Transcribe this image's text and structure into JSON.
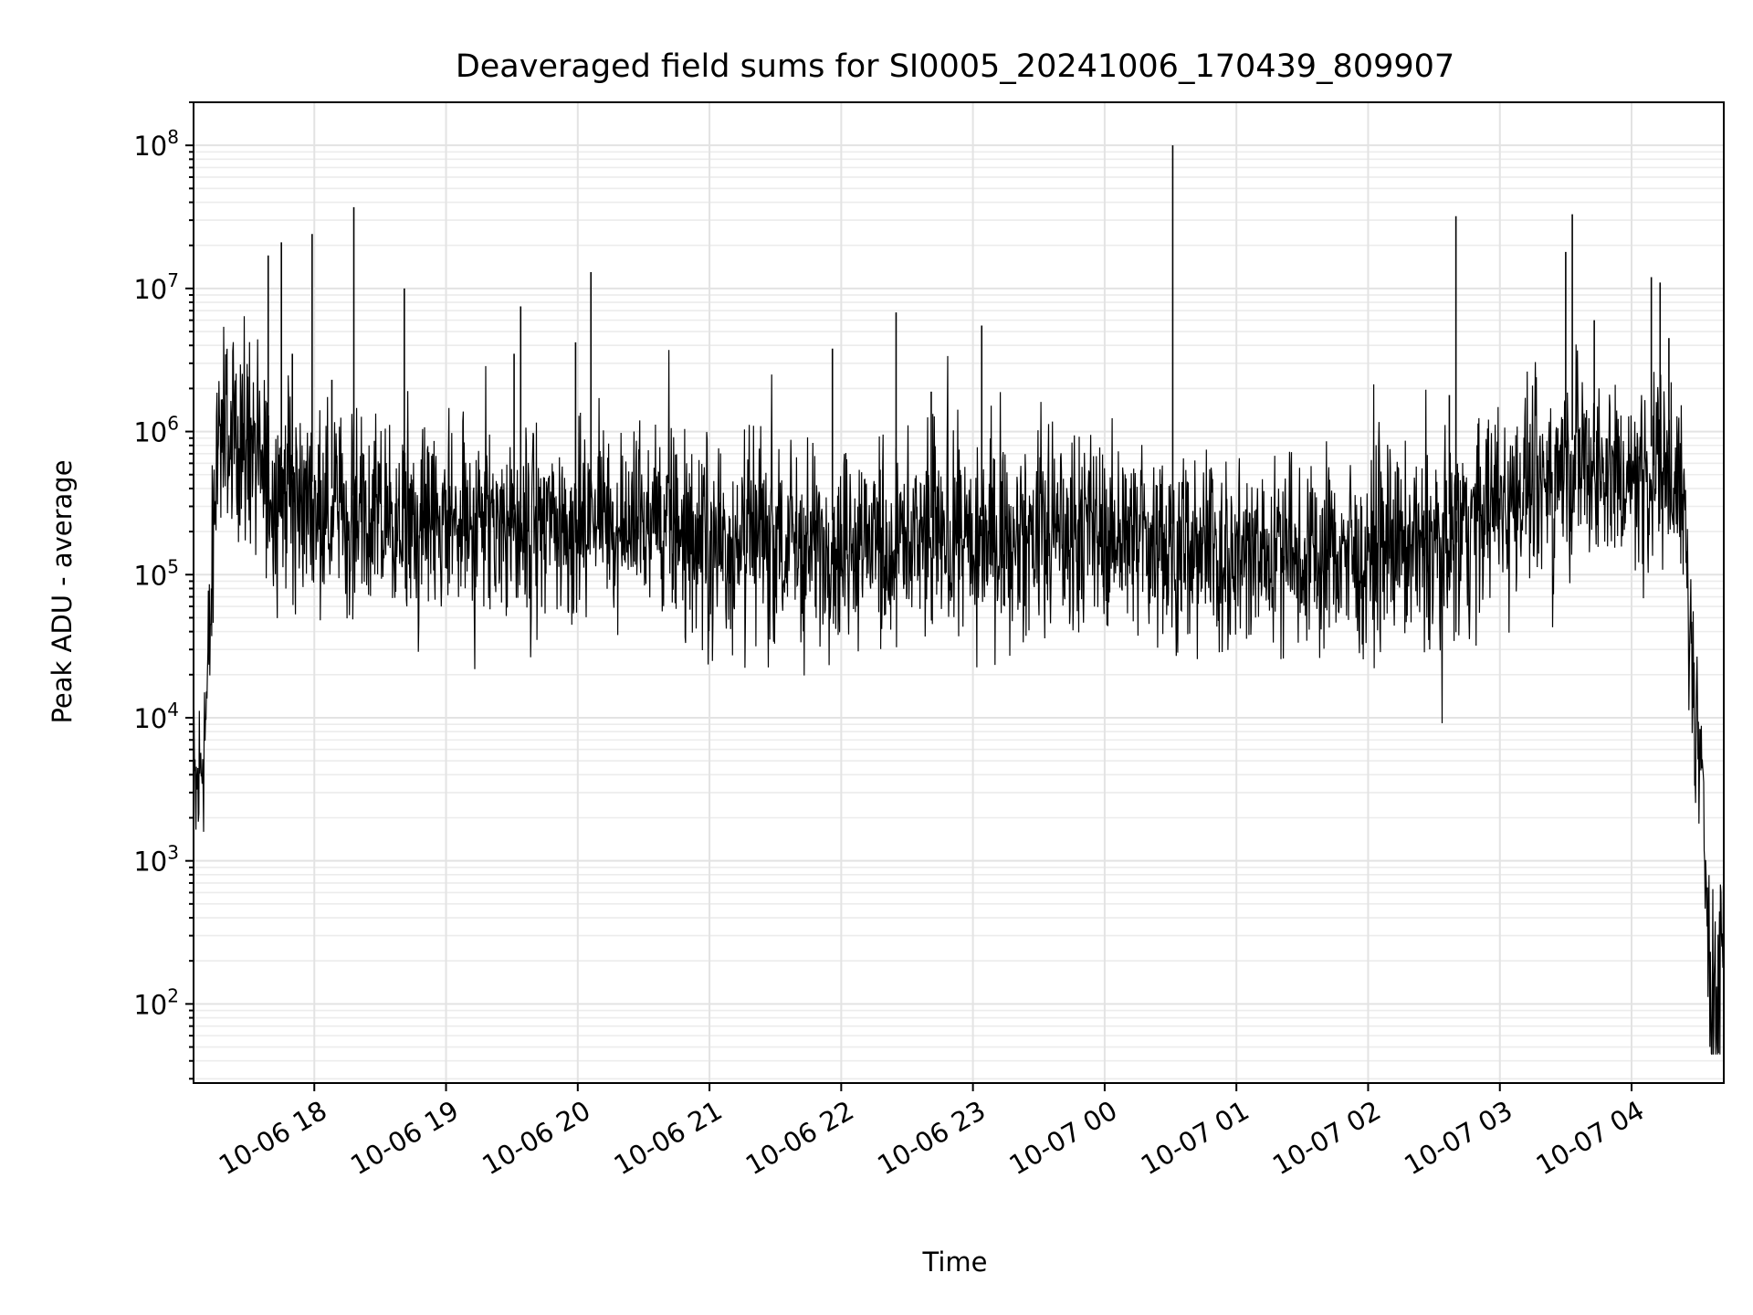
{
  "chart_data": {
    "type": "line",
    "title": "Deaveraged field sums for SI0005_20241006_170439_809907",
    "xlabel": "Time",
    "ylabel": "Peak ADU - average",
    "yscale": "log",
    "ylim": [
      28,
      200000000
    ],
    "xlim": [
      "2024-10-06 17:05",
      "2024-10-07 04:42"
    ],
    "grid": true,
    "x_ticks": [
      {
        "t": "2024-10-06 18:00",
        "label": "10-06 18"
      },
      {
        "t": "2024-10-06 19:00",
        "label": "10-06 19"
      },
      {
        "t": "2024-10-06 20:00",
        "label": "10-06 20"
      },
      {
        "t": "2024-10-06 21:00",
        "label": "10-06 21"
      },
      {
        "t": "2024-10-06 22:00",
        "label": "10-06 22"
      },
      {
        "t": "2024-10-06 23:00",
        "label": "10-06 23"
      },
      {
        "t": "2024-10-07 00:00",
        "label": "10-07 00"
      },
      {
        "t": "2024-10-07 01:00",
        "label": "10-07 01"
      },
      {
        "t": "2024-10-07 02:00",
        "label": "10-07 02"
      },
      {
        "t": "2024-10-07 03:00",
        "label": "10-07 03"
      },
      {
        "t": "2024-10-07 04:00",
        "label": "10-07 04"
      }
    ],
    "y_ticks": [
      {
        "value": 100,
        "base": "10",
        "exp": "2"
      },
      {
        "value": 1000,
        "base": "10",
        "exp": "3"
      },
      {
        "value": 10000,
        "base": "10",
        "exp": "4"
      },
      {
        "value": 100000,
        "base": "10",
        "exp": "5"
      },
      {
        "value": 1000000,
        "base": "10",
        "exp": "6"
      },
      {
        "value": 10000000,
        "base": "10",
        "exp": "7"
      },
      {
        "value": 100000000,
        "base": "10",
        "exp": "8"
      }
    ],
    "series": [
      {
        "color": "#000000",
        "trend": [
          [
            "2024-10-06 17:05",
            3000
          ],
          [
            "2024-10-06 17:06",
            2500
          ],
          [
            "2024-10-06 17:08",
            4000
          ],
          [
            "2024-10-06 17:11",
            12000
          ],
          [
            "2024-10-06 17:13",
            60000
          ],
          [
            "2024-10-06 17:15",
            400000
          ],
          [
            "2024-10-06 17:17",
            900000
          ],
          [
            "2024-10-06 17:25",
            1000000
          ],
          [
            "2024-10-06 17:35",
            550000
          ],
          [
            "2024-10-06 17:50",
            350000
          ],
          [
            "2024-10-06 18:30",
            220000
          ],
          [
            "2024-10-06 19:30",
            200000
          ],
          [
            "2024-10-06 20:15",
            260000
          ],
          [
            "2024-10-06 21:00",
            180000
          ],
          [
            "2024-10-06 22:00",
            170000
          ],
          [
            "2024-10-06 23:00",
            180000
          ],
          [
            "2024-10-07 00:00",
            200000
          ],
          [
            "2024-10-07 00:40",
            150000
          ],
          [
            "2024-10-07 01:30",
            140000
          ],
          [
            "2024-10-07 02:30",
            160000
          ],
          [
            "2024-10-07 02:50",
            250000
          ],
          [
            "2024-10-07 03:05",
            350000
          ],
          [
            "2024-10-07 03:20",
            450000
          ],
          [
            "2024-10-07 03:35",
            650000
          ],
          [
            "2024-10-07 04:00",
            500000
          ],
          [
            "2024-10-07 04:15",
            600000
          ],
          [
            "2024-10-07 04:22",
            500000
          ],
          [
            "2024-10-07 04:25",
            150000
          ],
          [
            "2024-10-07 04:28",
            15000
          ],
          [
            "2024-10-07 04:31",
            4000
          ],
          [
            "2024-10-07 04:34",
            900
          ],
          [
            "2024-10-07 04:36",
            200
          ],
          [
            "2024-10-07 04:39",
            80
          ],
          [
            "2024-10-07 04:42",
            500
          ]
        ],
        "spikes": [
          [
            "2024-10-06 17:39",
            17000000
          ],
          [
            "2024-10-06 17:45",
            21000000
          ],
          [
            "2024-10-06 17:50",
            3500000
          ],
          [
            "2024-10-06 17:59",
            24000000
          ],
          [
            "2024-10-06 18:08",
            2300000
          ],
          [
            "2024-10-06 18:18",
            37000000
          ],
          [
            "2024-10-06 18:41",
            10000000
          ],
          [
            "2024-10-06 19:34",
            7500000
          ],
          [
            "2024-10-06 19:31",
            3500000
          ],
          [
            "2024-10-06 19:59",
            4200000
          ],
          [
            "2024-10-06 20:06",
            13000000
          ],
          [
            "2024-10-06 21:56",
            3800000
          ],
          [
            "2024-10-06 22:25",
            6800000
          ],
          [
            "2024-10-06 22:41",
            1900000
          ],
          [
            "2024-10-06 23:04",
            5500000
          ],
          [
            "2024-10-07 00:31",
            100000000
          ],
          [
            "2024-10-07 02:40",
            32000000
          ],
          [
            "2024-10-07 02:37",
            1800000
          ],
          [
            "2024-10-07 03:30",
            18000000
          ],
          [
            "2024-10-07 03:33",
            33000000
          ],
          [
            "2024-10-07 03:43",
            6000000
          ],
          [
            "2024-10-07 04:09",
            12000000
          ],
          [
            "2024-10-07 04:13",
            11000000
          ],
          [
            "2024-10-07 04:17",
            4500000
          ]
        ]
      }
    ]
  }
}
